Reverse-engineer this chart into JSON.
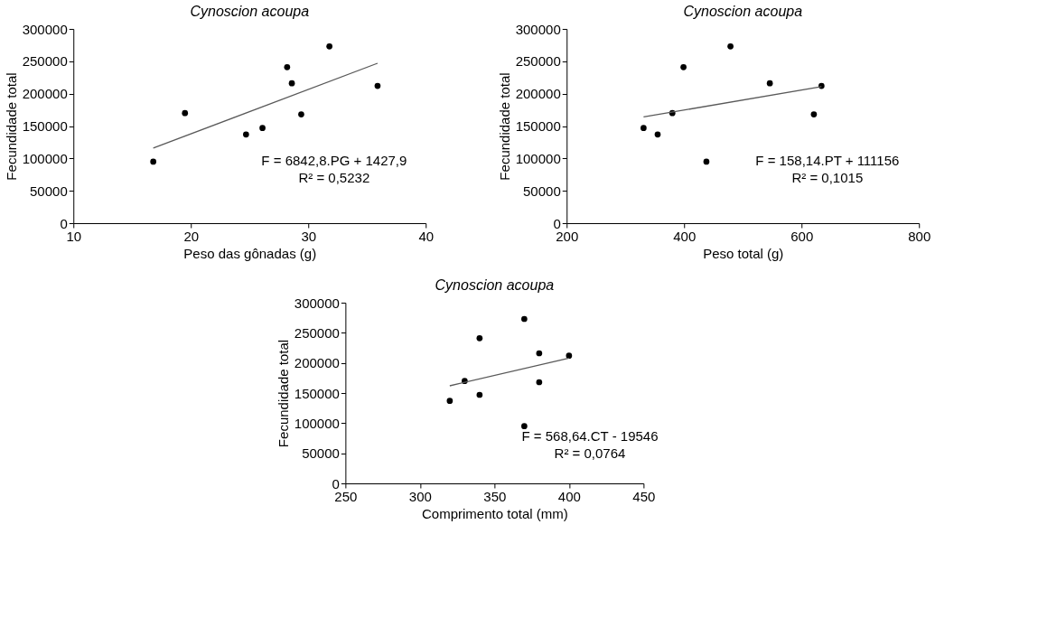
{
  "chart_data": [
    {
      "type": "scatter",
      "title": "Cynoscion acoupa",
      "xlabel": "Peso das gônadas (g)",
      "ylabel": "Fecundidade total",
      "xlim": [
        10,
        40
      ],
      "xticks": [
        10,
        20,
        30,
        40
      ],
      "ylim": [
        0,
        300000
      ],
      "yticks": [
        0,
        50000,
        100000,
        150000,
        200000,
        250000,
        300000
      ],
      "grid": false,
      "marker": "circle",
      "series": [
        {
          "type": "scatter",
          "color": "#000000",
          "x": [
            16.8,
            19.5,
            24.7,
            26.1,
            28.2,
            28.6,
            29.4,
            31.8,
            35.9
          ],
          "values": [
            95000,
            170000,
            137000,
            147000,
            241000,
            216000,
            168000,
            273000,
            212000
          ]
        },
        {
          "type": "line",
          "color": "#595959",
          "marker": "none",
          "line_style": "solid",
          "x": [
            16.8,
            35.9
          ],
          "values": [
            116000,
            247000
          ]
        }
      ],
      "annotations": [
        "F = 6842,8.PG + 1427,9",
        "R² = 0,5232"
      ]
    },
    {
      "type": "scatter",
      "title": "Cynoscion acoupa",
      "xlabel": "Peso total (g)",
      "ylabel": "Fecundidade total",
      "xlim": [
        200,
        800
      ],
      "xticks": [
        200,
        400,
        600,
        800
      ],
      "ylim": [
        0,
        300000
      ],
      "yticks": [
        0,
        50000,
        100000,
        150000,
        200000,
        250000,
        300000
      ],
      "grid": false,
      "marker": "circle",
      "series": [
        {
          "type": "scatter",
          "color": "#000000",
          "x": [
            331,
            355,
            380,
            399,
            438,
            479,
            546,
            621,
            634
          ],
          "values": [
            147000,
            137000,
            170000,
            241000,
            95000,
            273000,
            216000,
            168000,
            212000
          ]
        },
        {
          "type": "line",
          "color": "#595959",
          "marker": "none",
          "line_style": "solid",
          "x": [
            331,
            634
          ],
          "values": [
            164000,
            211000
          ]
        }
      ],
      "annotations": [
        "F = 158,14.PT + 111156",
        "R² = 0,1015"
      ]
    },
    {
      "type": "scatter",
      "title": "Cynoscion acoupa",
      "xlabel": "Comprimento total (mm)",
      "ylabel": "Fecundidade total",
      "xlim": [
        250,
        450
      ],
      "xticks": [
        250,
        300,
        350,
        400,
        450
      ],
      "ylim": [
        0,
        300000
      ],
      "yticks": [
        0,
        50000,
        100000,
        150000,
        200000,
        250000,
        300000
      ],
      "grid": false,
      "marker": "circle",
      "series": [
        {
          "type": "scatter",
          "color": "#000000",
          "x": [
            320,
            330,
            340,
            340,
            370,
            370,
            380,
            380,
            400
          ],
          "values": [
            137000,
            170000,
            241000,
            147000,
            273000,
            95000,
            216000,
            168000,
            212000
          ]
        },
        {
          "type": "line",
          "color": "#595959",
          "marker": "none",
          "line_style": "solid",
          "x": [
            320,
            400
          ],
          "values": [
            162000,
            208000
          ]
        }
      ],
      "annotations": [
        "F = 568,64.CT - 19546",
        "R² = 0,0764"
      ]
    }
  ]
}
